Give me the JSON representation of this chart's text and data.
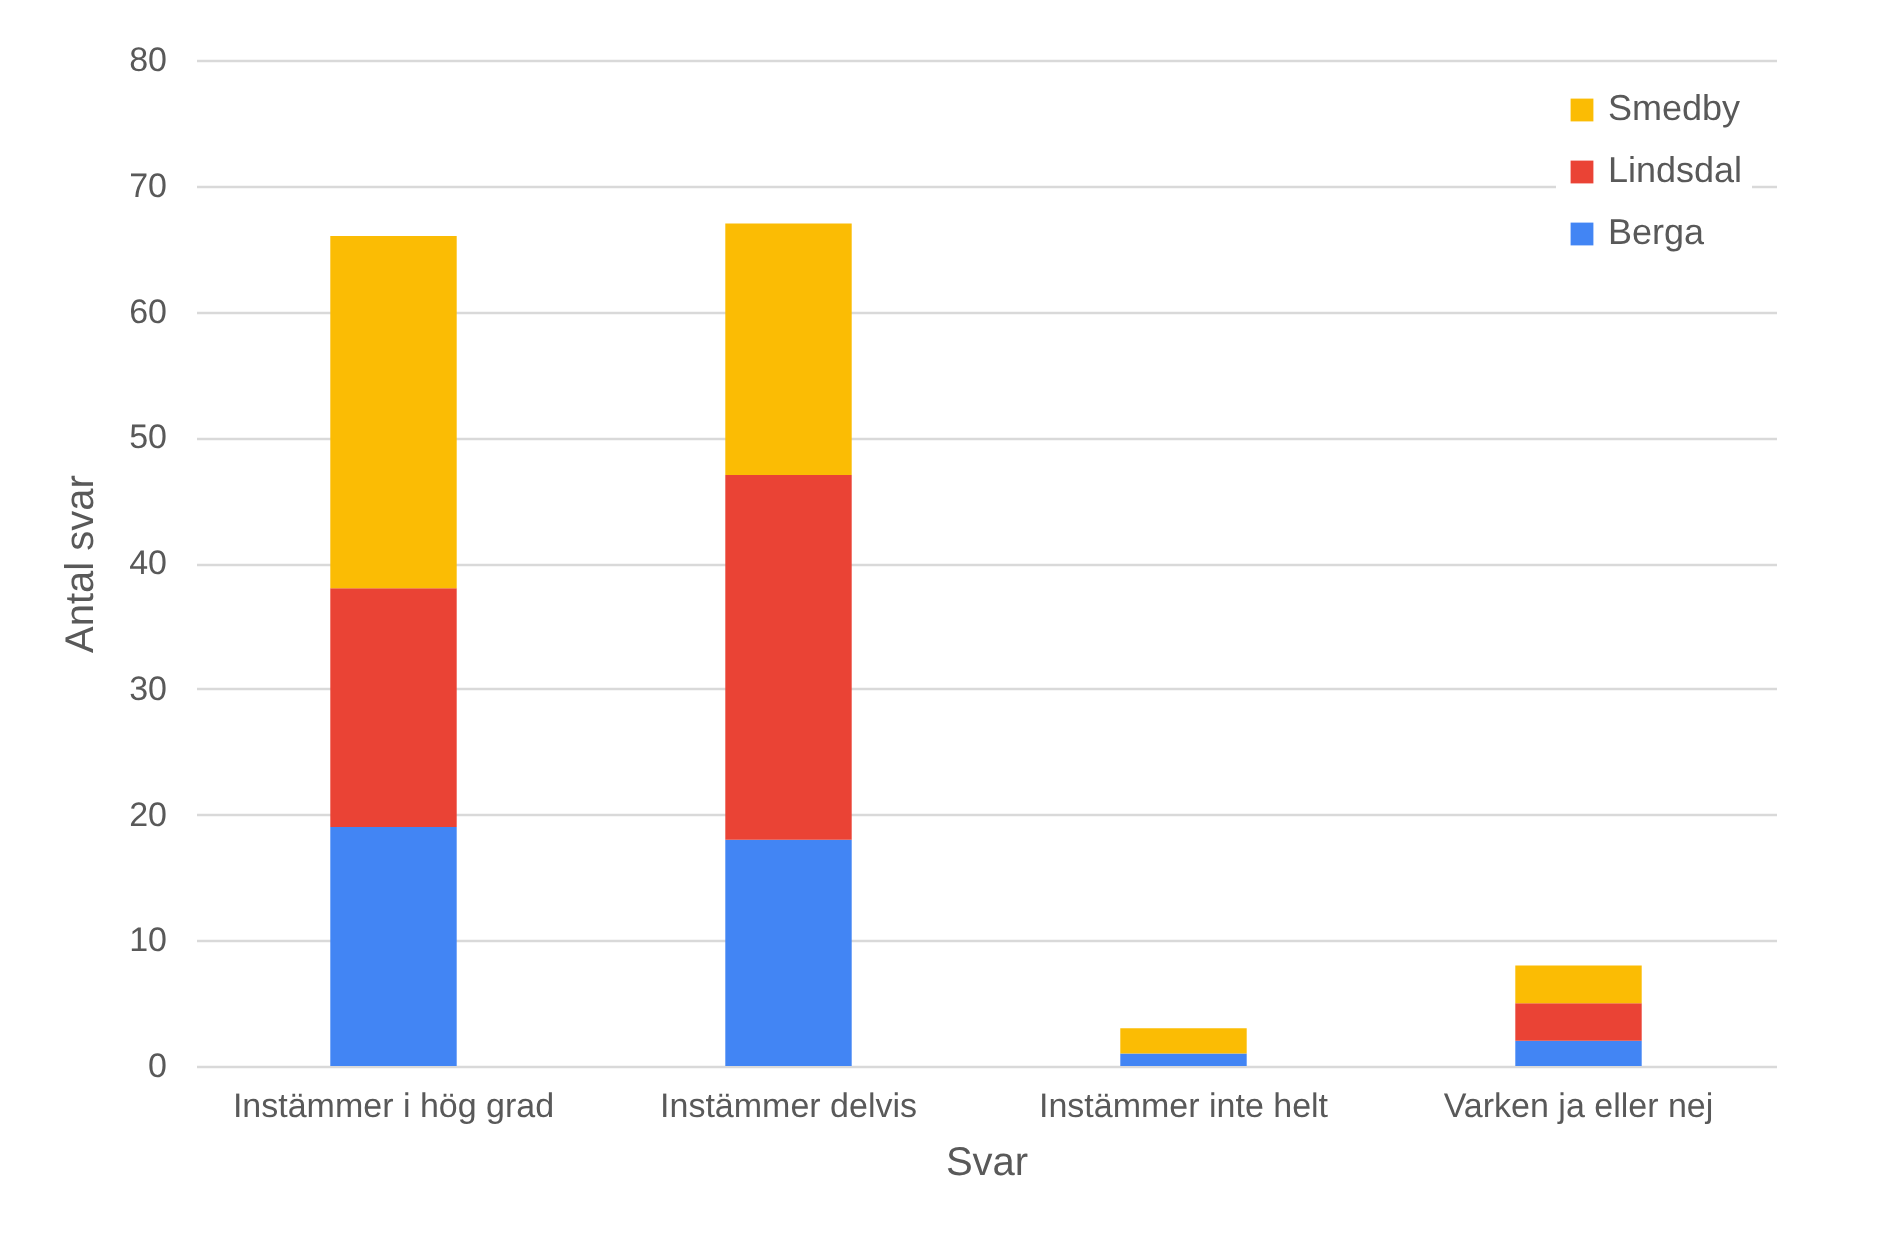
{
  "chart_data": {
    "type": "bar",
    "stacked": true,
    "categories": [
      "Instämmer i hög grad",
      "Instämmer delvis",
      "Instämmer inte helt",
      "Varken ja eller nej"
    ],
    "series": [
      {
        "name": "Berga",
        "color": "#4285f4",
        "values": [
          19,
          18,
          1,
          2
        ]
      },
      {
        "name": "Lindsdal",
        "color": "#ea4335",
        "values": [
          19,
          29,
          0,
          3
        ]
      },
      {
        "name": "Smedby",
        "color": "#fbbc04",
        "values": [
          28,
          20,
          2,
          3
        ]
      }
    ],
    "xlabel": "Svar",
    "ylabel": "Antal svar",
    "ylim": [
      0,
      80
    ],
    "yticks": [
      0,
      10,
      20,
      30,
      40,
      50,
      60,
      70,
      80
    ],
    "grid": "y",
    "legend": "top right"
  }
}
